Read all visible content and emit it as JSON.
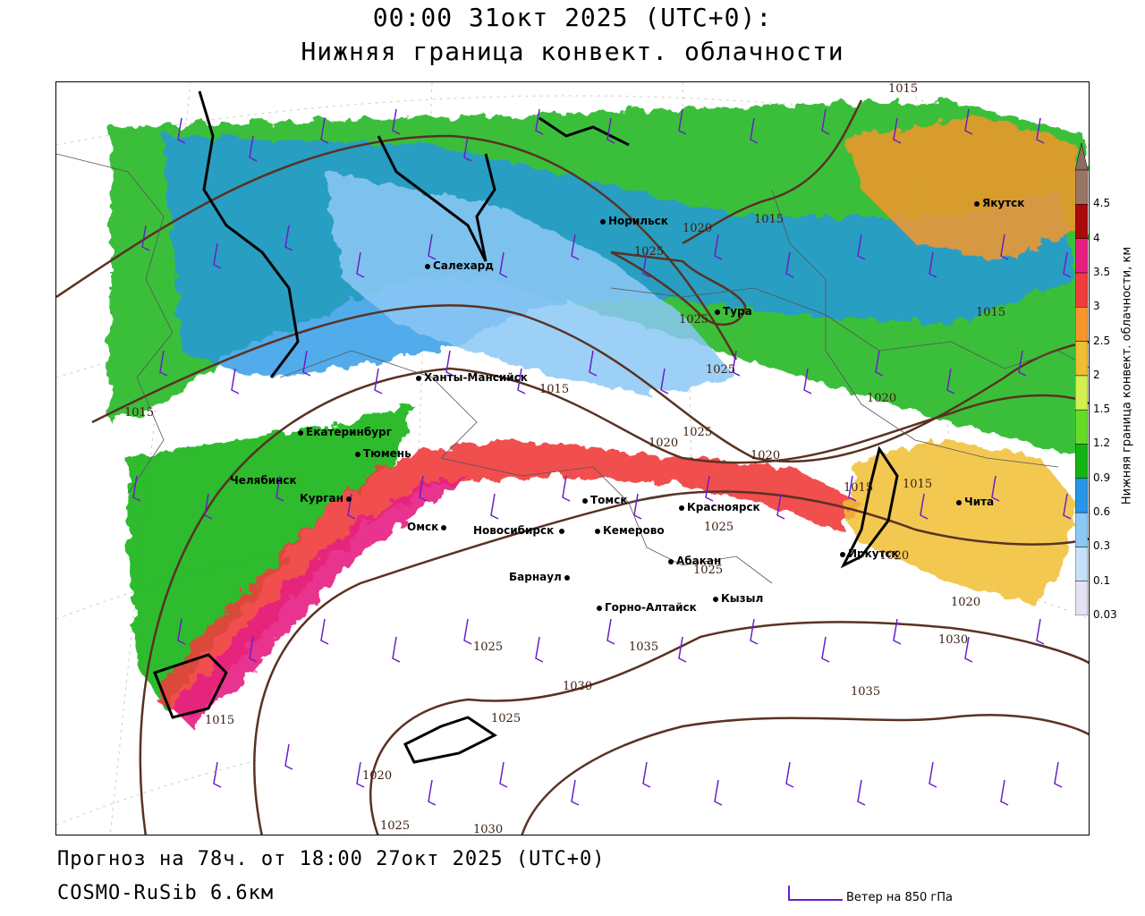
{
  "header": {
    "title_line1": "00:00 31окт 2025 (UTC+0):",
    "title_line2": "Нижняя граница конвект. облачности"
  },
  "footer": {
    "forecast": "Прогноз на 78ч. от 18:00 27окт 2025 (UTC+0)",
    "model": "COSMO-RuSib 6.6км"
  },
  "legend": {
    "wind_label": "Ветер на 850 гПа",
    "wind_color": "#6a1fc8"
  },
  "colorbar": {
    "label": "Нижняя граница конвект. облачности, км",
    "levels": [
      {
        "value": "0.03",
        "color": "#e6e0f5"
      },
      {
        "value": "0.1",
        "color": "#c6e0fa"
      },
      {
        "value": "0.3",
        "color": "#8cc8f5"
      },
      {
        "value": "0.6",
        "color": "#2896e6"
      },
      {
        "value": "0.9",
        "color": "#14b414"
      },
      {
        "value": "1.2",
        "color": "#64dc28"
      },
      {
        "value": "1.5",
        "color": "#d2f050"
      },
      {
        "value": "2",
        "color": "#f0be32"
      },
      {
        "value": "2.5",
        "color": "#f5962d"
      },
      {
        "value": "3",
        "color": "#f03c3c"
      },
      {
        "value": "3.5",
        "color": "#e61e82"
      },
      {
        "value": "4",
        "color": "#aa0a0a"
      },
      {
        "value": "4.5",
        "color": "#9b7564"
      }
    ],
    "top_color": "#8c6e5f"
  },
  "cities": [
    {
      "name": "Норильск"
    },
    {
      "name": "Якутск"
    },
    {
      "name": "Салехард"
    },
    {
      "name": "Тура"
    },
    {
      "name": "Ханты-Мансийск"
    },
    {
      "name": "Екатеринбург"
    },
    {
      "name": "Тюмень"
    },
    {
      "name": "Челябинск"
    },
    {
      "name": "Курган"
    },
    {
      "name": "Омск"
    },
    {
      "name": "Новосибирск"
    },
    {
      "name": "Томск"
    },
    {
      "name": "Кемерово"
    },
    {
      "name": "Красноярск"
    },
    {
      "name": "Барнаул"
    },
    {
      "name": "Абакан"
    },
    {
      "name": "Кызыл"
    },
    {
      "name": "Горно-Алтайск"
    },
    {
      "name": "Иркутск"
    },
    {
      "name": "Чита"
    }
  ],
  "isobar_labels": [
    "1015",
    "1015",
    "1020",
    "1025",
    "1025",
    "1015",
    "1025",
    "1015",
    "1020",
    "1020",
    "1020",
    "1015",
    "1020",
    "1015",
    "1020",
    "1025",
    "1025",
    "1035",
    "1030",
    "1030",
    "1035",
    "1025",
    "1025",
    "1015",
    "1020",
    "1025",
    "1030",
    "1015",
    "1025"
  ]
}
